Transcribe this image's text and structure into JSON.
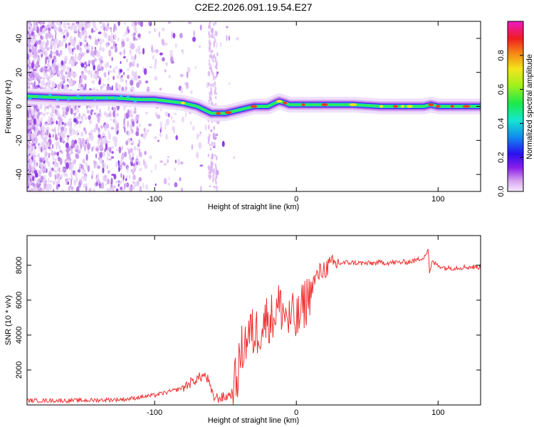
{
  "figure": {
    "title": "C2E2.2026.091.19.54.E27"
  },
  "chart_data": [
    {
      "type": "heatmap",
      "name": "spectrogram",
      "title": "C2E2.2026.091.19.54.E27",
      "xlabel": "Height of straight line (km)",
      "ylabel": "Frequency (Hz)",
      "xlim": [
        -190,
        130
      ],
      "ylim": [
        -50,
        50
      ],
      "xticks": [
        -100,
        0,
        100
      ],
      "yticks": [
        -40,
        -20,
        0,
        20,
        40
      ],
      "grid": false,
      "ridge": {
        "description": "dominant frequency track (Hz) vs height (km)",
        "x": [
          -190,
          -160,
          -130,
          -110,
          -100,
          -90,
          -80,
          -70,
          -60,
          -55,
          -50,
          -45,
          -40,
          -35,
          -30,
          -25,
          -20,
          -15,
          -12,
          -8,
          -5,
          0,
          10,
          20,
          40,
          60,
          80,
          90,
          95,
          100,
          110,
          120,
          130
        ],
        "y": [
          6,
          5,
          5,
          4,
          4,
          3,
          2,
          0,
          -4,
          -4,
          -4,
          -3,
          -2,
          -1,
          0,
          0,
          0,
          2,
          3,
          2,
          1,
          1,
          1,
          1,
          1,
          0,
          0,
          0,
          1,
          0,
          0,
          0,
          0
        ]
      },
      "colorbar": {
        "label": "Normalized spectral amplitude",
        "min": 0,
        "max": 1,
        "ticks": [
          "0.0",
          "0.2",
          "0.4",
          "0.6",
          "0.8"
        ]
      }
    },
    {
      "type": "line",
      "name": "snr",
      "xlabel": "Height of straight line (km)",
      "ylabel": "SNR (10 * v/v)",
      "xlim": [
        -190,
        130
      ],
      "ylim": [
        0,
        9700
      ],
      "xticks": [
        -100,
        0,
        100
      ],
      "yticks": [
        2000,
        4000,
        6000,
        8000
      ],
      "grid": false,
      "series": [
        {
          "name": "SNR",
          "color": "#ee3333",
          "x": [
            -190,
            -180,
            -170,
            -160,
            -150,
            -140,
            -130,
            -120,
            -110,
            -100,
            -95,
            -90,
            -85,
            -80,
            -75,
            -70,
            -65,
            -62,
            -60,
            -58,
            -55,
            -50,
            -45,
            -42,
            -40,
            -38,
            -35,
            -32,
            -30,
            -28,
            -25,
            -22,
            -20,
            -18,
            -15,
            -12,
            -10,
            -8,
            -5,
            -3,
            0,
            3,
            5,
            8,
            10,
            12,
            15,
            18,
            20,
            22,
            25,
            30,
            35,
            40,
            50,
            60,
            70,
            80,
            85,
            88,
            90,
            92,
            93,
            94,
            95,
            96,
            100,
            105,
            110,
            120,
            130
          ],
          "y": [
            250,
            250,
            250,
            250,
            260,
            280,
            300,
            330,
            450,
            550,
            650,
            750,
            850,
            1000,
            1250,
            1500,
            1700,
            1400,
            700,
            450,
            400,
            450,
            700,
            1500,
            2500,
            3300,
            3800,
            4200,
            4000,
            4200,
            4500,
            4800,
            5100,
            4900,
            5300,
            5700,
            5500,
            5200,
            4800,
            5000,
            4700,
            5200,
            5700,
            6100,
            6600,
            7000,
            7400,
            7700,
            7800,
            7900,
            8000,
            8100,
            8150,
            8150,
            8100,
            8150,
            8150,
            8200,
            8300,
            8400,
            8500,
            8700,
            9000,
            7500,
            7900,
            8200,
            8000,
            7850,
            7850,
            7900,
            7900
          ]
        }
      ]
    }
  ]
}
